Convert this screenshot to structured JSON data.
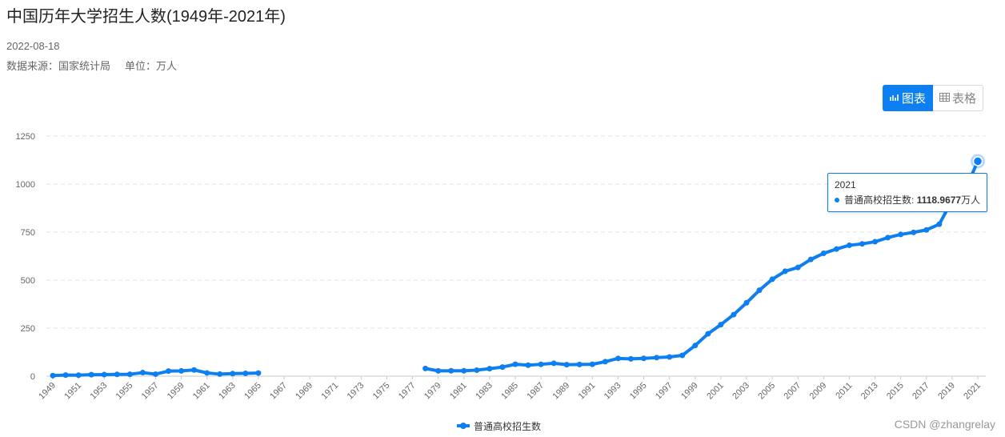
{
  "page": {
    "title": "中国历年大学招生人数(1949年-2021年)",
    "date": "2022-08-18",
    "source": "数据来源：国家统计局",
    "unit_label": "单位：万人",
    "watermark": "CSDN @zhangrelay"
  },
  "toggle": {
    "chart_label": "图表",
    "table_label": "表格",
    "chart_icon": "line-chart-icon",
    "table_icon": "table-grid-icon"
  },
  "tooltip": {
    "year": "2021",
    "series": "普通高校招生数",
    "value": "1118.9677",
    "unit": "万人"
  },
  "chart_data": {
    "type": "line",
    "color": "#0d7ff0",
    "ylim": [
      0,
      1250
    ],
    "yticks": [
      0,
      250,
      500,
      750,
      1000,
      1250
    ],
    "x": [
      1949,
      1950,
      1951,
      1952,
      1953,
      1954,
      1955,
      1956,
      1957,
      1958,
      1959,
      1960,
      1961,
      1962,
      1963,
      1964,
      1965,
      1966,
      1967,
      1968,
      1969,
      1970,
      1971,
      1972,
      1973,
      1974,
      1975,
      1976,
      1977,
      1978,
      1979,
      1980,
      1981,
      1982,
      1983,
      1984,
      1985,
      1986,
      1987,
      1988,
      1989,
      1990,
      1991,
      1992,
      1993,
      1994,
      1995,
      1996,
      1997,
      1998,
      1999,
      2000,
      2001,
      2002,
      2003,
      2004,
      2005,
      2006,
      2007,
      2008,
      2009,
      2010,
      2011,
      2012,
      2013,
      2014,
      2015,
      2016,
      2017,
      2018,
      2019,
      2020,
      2021
    ],
    "xtick_labels": [
      "1949",
      "1951",
      "1953",
      "1955",
      "1957",
      "1959",
      "1961",
      "1963",
      "1965",
      "1967",
      "1969",
      "1971",
      "1973",
      "1975",
      "1977",
      "1979",
      "1981",
      "1983",
      "1985",
      "1987",
      "1989",
      "1991",
      "1993",
      "1995",
      "1997",
      "1999",
      "2001",
      "2003",
      "2005",
      "2007",
      "2009",
      "2011",
      "2013",
      "2015",
      "2017",
      "2019",
      "2021"
    ],
    "series": [
      {
        "name": "普通高校招生数",
        "values": [
          3.1,
          5.8,
          5.3,
          7.9,
          8.1,
          9.2,
          9.8,
          18.5,
          10.6,
          26.5,
          27.4,
          32.3,
          16.9,
          10.7,
          13.3,
          14.7,
          16.4,
          null,
          null,
          null,
          null,
          null,
          null,
          null,
          null,
          null,
          null,
          null,
          null,
          40.2,
          27.5,
          28.1,
          27.9,
          31.5,
          39.1,
          47.5,
          61.9,
          57.2,
          61.7,
          67.0,
          59.7,
          60.9,
          62.0,
          75.4,
          92.4,
          90.0,
          92.6,
          96.6,
          100.0,
          108.4,
          159.7,
          220.6,
          268.3,
          320.5,
          382.2,
          447.3,
          504.5,
          546.1,
          565.9,
          607.7,
          639.5,
          661.8,
          681.5,
          688.8,
          699.8,
          721.4,
          737.8,
          748.6,
          761.5,
          791.0,
          914.9,
          967.5,
          1118.9677
        ]
      }
    ],
    "legend": "bottom-center",
    "grid": "horizontal-dashed",
    "highlight_x": 2021
  }
}
